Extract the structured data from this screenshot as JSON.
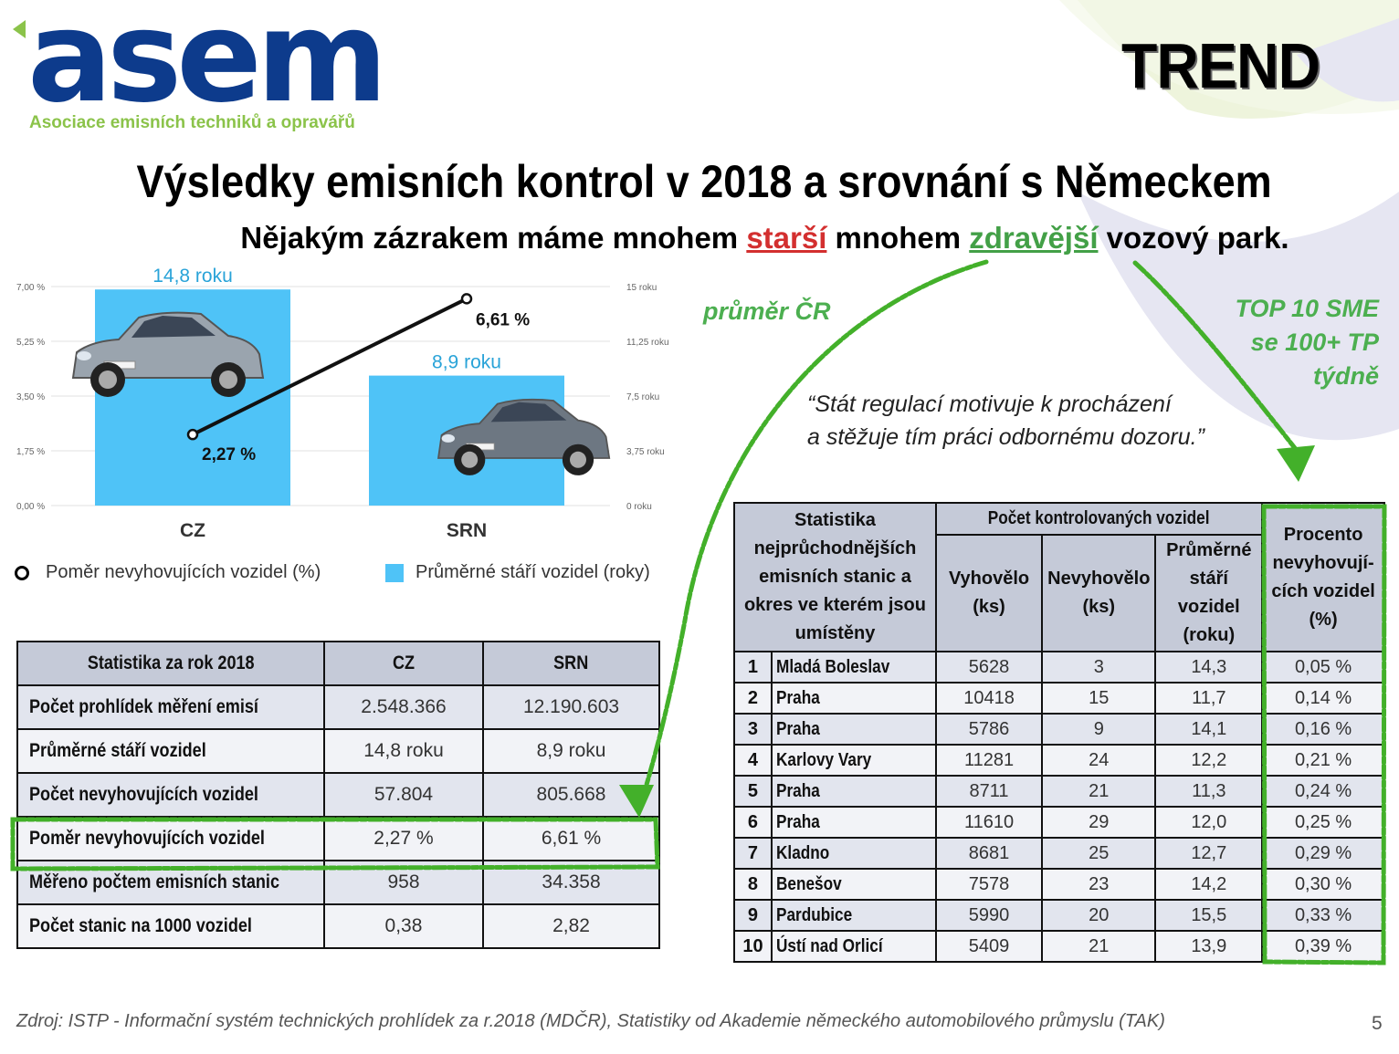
{
  "header": {
    "logo_text": "asem",
    "logo_tagline": "Asociace emisních techniků a opravářů",
    "brand_label": "TREND"
  },
  "title": "Výsledky emisních kontrol v 2018 a srovnání s Německem",
  "subtitle": {
    "part1": "Nějakým zázrakem máme mnohem ",
    "red_word": "starší",
    "part2": " mnohem ",
    "green_word": "zdravější",
    "part3": " vozový park."
  },
  "annotations": {
    "cz_average": "průměr ČR",
    "top10_lines": [
      "TOP 10 SME",
      "se 100+ TP",
      "týdně"
    ],
    "quote_lines": [
      "“Stát regulací motivuje k procházení",
      "a stěžuje tím práci odbornému dozoru.”"
    ]
  },
  "colors": {
    "bar": "#4fc3f7",
    "line": "#111111",
    "accent_green": "#4caf50",
    "accent_red": "#d32f2f",
    "table_header": "#c5cad8"
  },
  "chart_data": {
    "type": "bar+line",
    "categories": [
      "CZ",
      "SRN"
    ],
    "bar_series": {
      "name": "Průměrné stáří vozidel (roky)",
      "values": [
        14.8,
        8.9
      ],
      "labels": [
        "14,8 roku",
        "8,9 roku"
      ]
    },
    "line_series": {
      "name": "Poměr nevyhovujících vozidel (%)",
      "values": [
        2.27,
        6.61
      ],
      "labels": [
        "2,27 %",
        "6,61 %"
      ]
    },
    "left_axis": {
      "ylim": [
        0,
        7
      ],
      "ticks": [
        "0,00 %",
        "1,75 %",
        "3,50 %",
        "5,25 %",
        "7,00 %"
      ]
    },
    "right_axis": {
      "ylim": [
        0,
        15
      ],
      "ticks": [
        "0 roku",
        "3,75 roku",
        "7,5 roku",
        "11,25 roku",
        "15 roku"
      ]
    },
    "legend_position": "bottom"
  },
  "table_left": {
    "headers": [
      "Statistika za rok 2018",
      "CZ",
      "SRN"
    ],
    "rows": [
      [
        "Počet prohlídek měření emisí",
        "2.548.366",
        "12.190.603"
      ],
      [
        "Průměrné stáří vozidel",
        "14,8 roku",
        "8,9 roku"
      ],
      [
        "Počet nevyhovujících vozidel",
        "57.804",
        "805.668"
      ],
      [
        "Poměr nevyhovujících vozidel",
        "2,27 %",
        "6,61 %"
      ],
      [
        "Měřeno počtem emisních stanic",
        "958",
        "34.358"
      ],
      [
        "Počet stanic na 1000 vozidel",
        "0,38",
        "2,82"
      ]
    ]
  },
  "table_right": {
    "header_main": "Statistika nejprůchodnějších emisních stanic a okres ve kterém jsou umístěny",
    "header_group": "Počet kontrolovaných vozidel",
    "header_cols": [
      "Vyhovělo (ks)",
      "Nevyhovělo (ks)",
      "Průměrné stáří vozidel (roku)"
    ],
    "header_last": "Procento nevyhovují-cích vozidel (%)",
    "rows": [
      [
        "1",
        "Mladá Boleslav",
        "5628",
        "3",
        "14,3",
        "0,05 %"
      ],
      [
        "2",
        "Praha",
        "10418",
        "15",
        "11,7",
        "0,14 %"
      ],
      [
        "3",
        "Praha",
        "5786",
        "9",
        "14,1",
        "0,16 %"
      ],
      [
        "4",
        "Karlovy Vary",
        "11281",
        "24",
        "12,2",
        "0,21 %"
      ],
      [
        "5",
        "Praha",
        "8711",
        "21",
        "11,3",
        "0,24 %"
      ],
      [
        "6",
        "Praha",
        "11610",
        "29",
        "12,0",
        "0,25 %"
      ],
      [
        "7",
        "Kladno",
        "8681",
        "25",
        "12,7",
        "0,29 %"
      ],
      [
        "8",
        "Benešov",
        "7578",
        "23",
        "14,2",
        "0,30 %"
      ],
      [
        "9",
        "Pardubice",
        "5990",
        "20",
        "15,5",
        "0,33 %"
      ],
      [
        "10",
        "Ústí nad Orlicí",
        "5409",
        "21",
        "13,9",
        "0,39 %"
      ]
    ]
  },
  "footer": {
    "source": "Zdroj: ISTP - Informační systém technických prohlídek za r.2018 (MDČR), Statistiky od Akademie německého automobilového průmyslu (TAK)",
    "page_number": "5"
  }
}
